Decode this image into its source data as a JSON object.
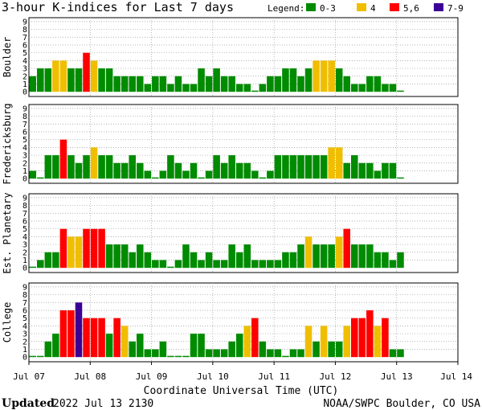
{
  "chart_data": {
    "type": "bar",
    "title": "3-hour K-indices for Last 7 days",
    "legend": {
      "label": "Legend:",
      "entries": [
        {
          "label": "0-3",
          "color": "#008b00"
        },
        {
          "label": "4",
          "color": "#f0be00"
        },
        {
          "label": "5,6",
          "color": "#ff0000"
        },
        {
          "label": "7-9",
          "color": "#3c0096"
        }
      ]
    },
    "ylim": [
      0,
      9
    ],
    "yticks": [
      "0",
      "1",
      "2",
      "3",
      "4",
      "5",
      "6",
      "7",
      "8",
      "9"
    ],
    "xlabel": "Coordinate Universal Time (UTC)",
    "xticks": [
      "Jul 07",
      "Jul 08",
      "Jul 09",
      "Jul 10",
      "Jul 11",
      "Jul 12",
      "Jul 13",
      "Jul 14"
    ],
    "bars_per_day": 8,
    "series": [
      {
        "name": "Boulder",
        "values": [
          2,
          3,
          3,
          4,
          4,
          3,
          3,
          5,
          4,
          3,
          3,
          2,
          2,
          2,
          2,
          1,
          2,
          2,
          1,
          2,
          1,
          1,
          3,
          2,
          3,
          2,
          2,
          1,
          1,
          0,
          1,
          2,
          2,
          3,
          3,
          2,
          3,
          4,
          4,
          4,
          3,
          2,
          1,
          1,
          2,
          2,
          1,
          1,
          0
        ]
      },
      {
        "name": "Fredericksburg",
        "values": [
          1,
          0,
          3,
          3,
          5,
          3,
          2,
          3,
          4,
          3,
          3,
          2,
          2,
          3,
          2,
          1,
          0,
          1,
          3,
          2,
          1,
          2,
          0,
          1,
          3,
          2,
          3,
          2,
          2,
          1,
          0,
          1,
          3,
          3,
          3,
          3,
          3,
          3,
          3,
          4,
          4,
          2,
          3,
          2,
          2,
          1,
          2,
          2,
          0
        ]
      },
      {
        "name": "Est. Planetary",
        "values": [
          0,
          1,
          2,
          2,
          5,
          4,
          4,
          5,
          5,
          5,
          3,
          3,
          3,
          2,
          3,
          2,
          1,
          1,
          0,
          1,
          3,
          2,
          1,
          2,
          1,
          1,
          3,
          2,
          3,
          1,
          1,
          1,
          1,
          2,
          2,
          3,
          4,
          3,
          3,
          3,
          4,
          5,
          3,
          3,
          3,
          2,
          2,
          1,
          2
        ]
      },
      {
        "name": "College",
        "values": [
          0,
          0,
          2,
          3,
          6,
          6,
          7,
          5,
          5,
          5,
          3,
          5,
          4,
          2,
          3,
          1,
          1,
          2,
          0,
          0,
          0,
          3,
          3,
          1,
          1,
          1,
          2,
          3,
          4,
          5,
          2,
          1,
          1,
          0,
          1,
          1,
          4,
          2,
          4,
          2,
          2,
          4,
          5,
          5,
          6,
          4,
          5,
          1,
          1
        ]
      }
    ]
  },
  "footer": {
    "updated_label": "Updated",
    "updated_value": "2022 Jul 13 2130",
    "source": "NOAA/SWPC Boulder, CO USA"
  }
}
